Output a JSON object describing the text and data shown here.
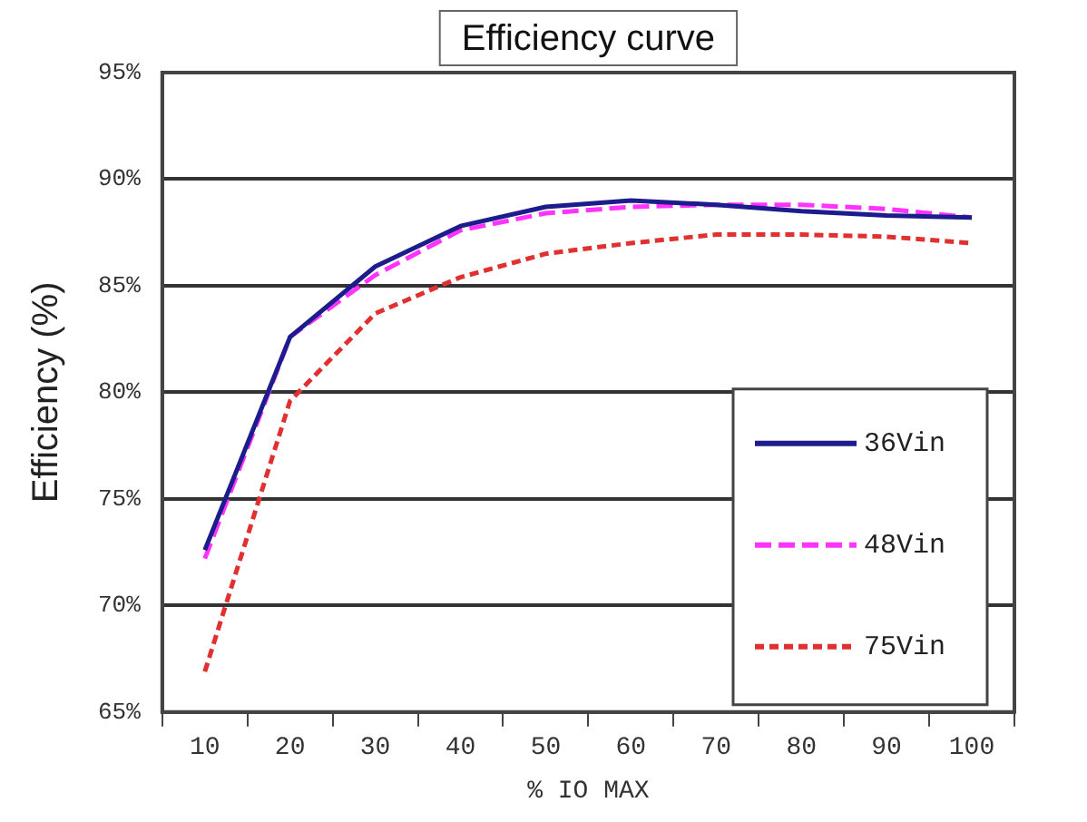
{
  "chart_data": {
    "type": "line",
    "title": "Efficiency curve",
    "xlabel": "% IO MAX",
    "ylabel": "Efficiency (%)",
    "categories": [
      "10",
      "20",
      "30",
      "40",
      "50",
      "60",
      "70",
      "80",
      "90",
      "100"
    ],
    "series": [
      {
        "name": "36Vin",
        "color": "#1c1c8c",
        "line_style": "solid",
        "values": [
          72.6,
          82.6,
          85.9,
          87.8,
          88.7,
          89.0,
          88.8,
          88.5,
          88.3,
          88.2
        ]
      },
      {
        "name": "48Vin",
        "color": "#ff33ff",
        "line_style": "dashed",
        "values": [
          72.2,
          82.6,
          85.5,
          87.6,
          88.4,
          88.7,
          88.8,
          88.8,
          88.6,
          88.2
        ]
      },
      {
        "name": "75Vin",
        "color": "#e03030",
        "line_style": "dotted",
        "values": [
          66.9,
          79.6,
          83.7,
          85.4,
          86.5,
          87.0,
          87.4,
          87.4,
          87.3,
          87.0
        ]
      }
    ],
    "ylim": [
      65,
      95
    ],
    "yticks": [
      {
        "value": 65,
        "label": "65%"
      },
      {
        "value": 70,
        "label": "70%"
      },
      {
        "value": 75,
        "label": "75%"
      },
      {
        "value": 80,
        "label": "80%"
      },
      {
        "value": 85,
        "label": "85%"
      },
      {
        "value": 90,
        "label": "90%"
      },
      {
        "value": 95,
        "label": "95%"
      }
    ],
    "grid": "y",
    "legend": "bottom right",
    "marker": "none"
  }
}
